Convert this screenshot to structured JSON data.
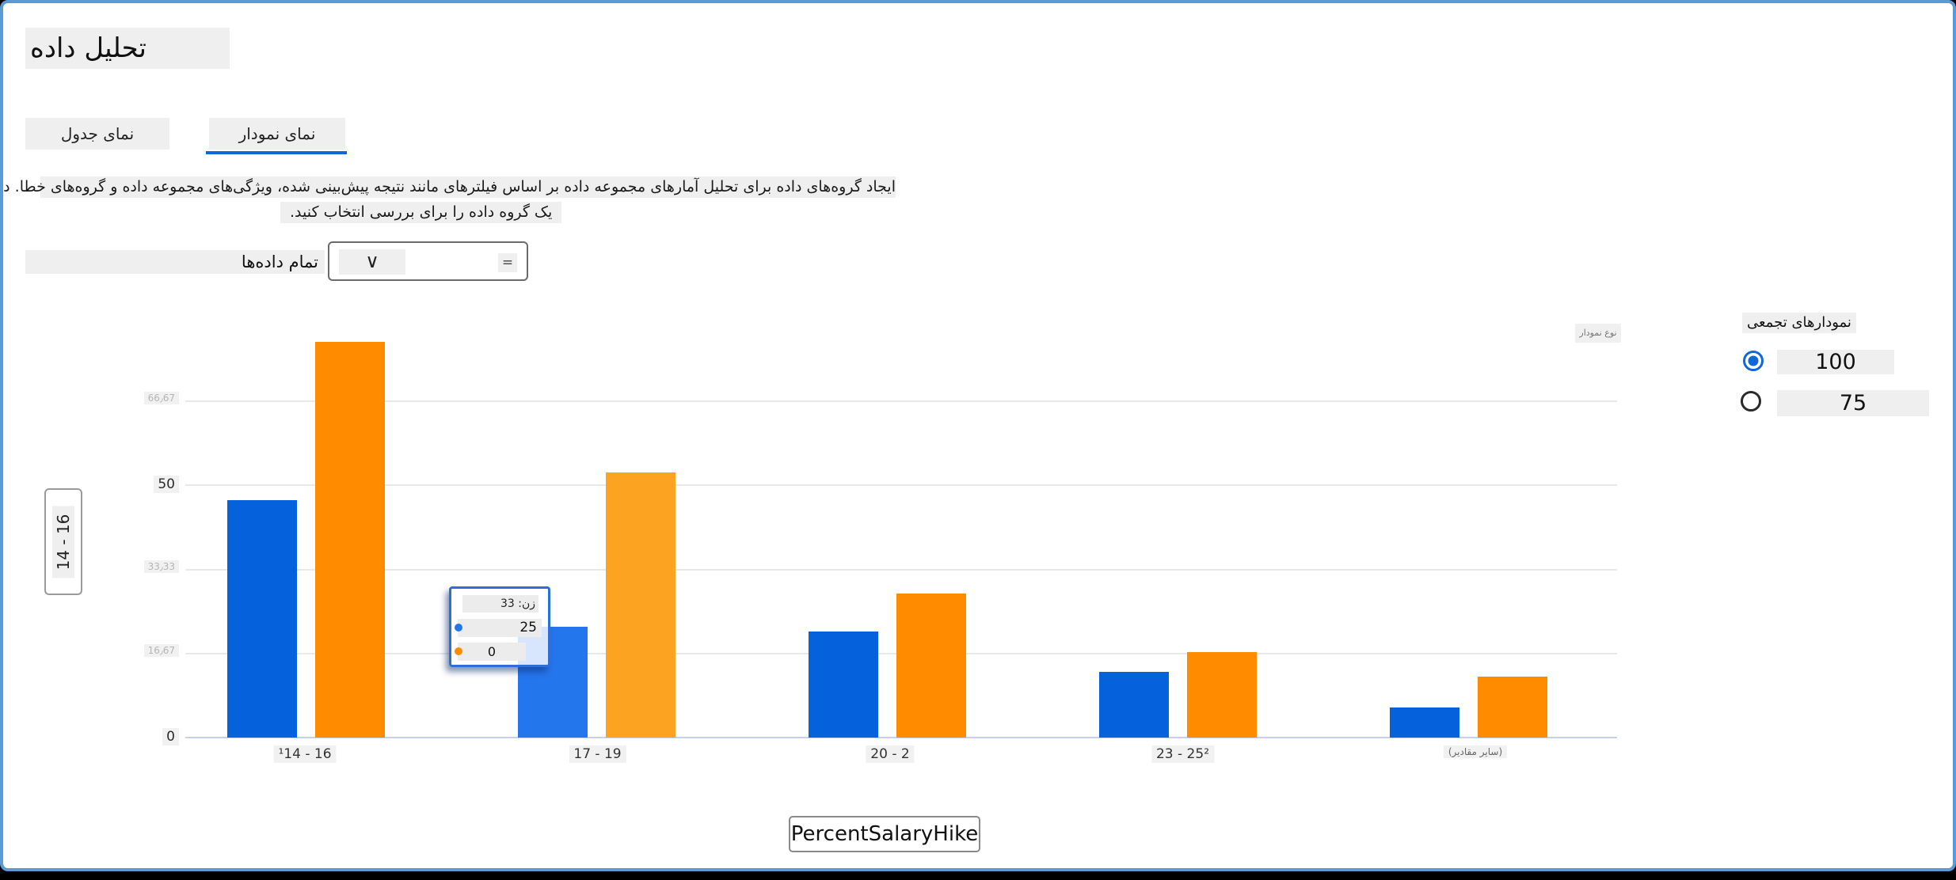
{
  "window": {
    "border_color": "#5B9BD5"
  },
  "header": {
    "title": "تحلیل داده"
  },
  "tabs": [
    {
      "label": "نمای جدول",
      "active": false
    },
    {
      "label": "نمای نمودار",
      "active": true
    }
  ],
  "description": {
    "line1": "ایجاد گروه‌های داده برای تحلیل آمارهای مجموعه داده بر اساس فیلترهای مانند نتیجه پیش‌بینی شده، ویژگی‌های مجموعه داده و گروه‌های خطا. درباره ارائه بیش/کم در مجموعه داده خود بیاموزید.",
    "line2": "یک گروه داده را برای بررسی انتخاب کنید."
  },
  "cohort_selector": {
    "label": "تمام داده‌ها",
    "chevron": "∨",
    "menu_icon": "="
  },
  "chart_data": {
    "type": "bar",
    "categories": [
      "14 - 16",
      "17 - 19",
      "20 - 2",
      "23 - 25",
      "(سایر مقادیر)"
    ],
    "xtick_display": [
      "¹14 - 16",
      "17 - 19",
      "20 - 2",
      "23 - 25²",
      "(سایر مقادیر)"
    ],
    "series": [
      {
        "name": "cohort-blue",
        "color": "#0562DC",
        "hover_color": "#2476ED",
        "values": [
          47,
          22,
          21,
          13,
          6
        ]
      },
      {
        "name": "cohort-orange",
        "color": "#FF8C00",
        "hover_color": "#FCA321",
        "values": [
          78.5,
          52.5,
          28.5,
          17,
          12
        ]
      }
    ],
    "hovered_group_index": 1,
    "y_ticks": [
      {
        "value": 0,
        "label": "0",
        "faint": false
      },
      {
        "value": 16.67,
        "label": "16٫67",
        "faint": true
      },
      {
        "value": 33.33,
        "label": "33٫33",
        "faint": true
      },
      {
        "value": 50,
        "label": "50",
        "faint": false
      },
      {
        "value": 66.67,
        "label": "66٫67",
        "faint": true
      }
    ],
    "ylim": [
      0,
      72
    ],
    "xlabel": "PercentSalaryHike",
    "grid": true,
    "legend": "none"
  },
  "tooltip": {
    "title": "زن: 33",
    "rows": [
      {
        "dot_color": "#2476ED",
        "value": "25"
      },
      {
        "dot_color": "#FF8C00",
        "value": "0"
      }
    ]
  },
  "axis_buttons": {
    "y": "14 - 16",
    "x": "PercentSalaryHike"
  },
  "chart_corner_label": "نوع نمودار",
  "panel": {
    "title": "نمودارهای تجمعی",
    "options": [
      {
        "label": "100",
        "selected": true
      },
      {
        "label": "75",
        "selected": false
      }
    ]
  }
}
